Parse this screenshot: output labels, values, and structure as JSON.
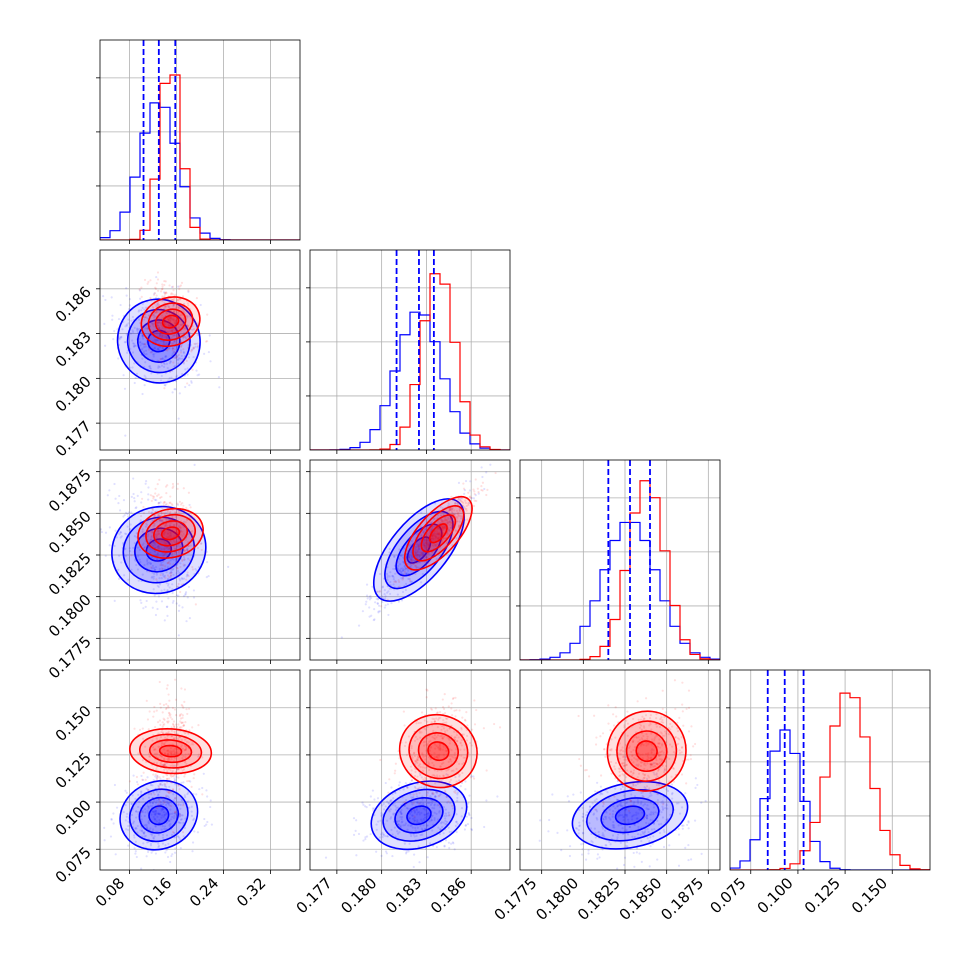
{
  "chart_data": {
    "type": "corner",
    "parameters": 4,
    "grid": true,
    "series": [
      {
        "color": "#0000ff",
        "mean": [
          0.13,
          0.1825,
          0.1828,
          0.093
        ],
        "sd": [
          0.032,
          0.0015,
          0.0016,
          0.009
        ],
        "quantile_lines": [
          [
            0.104,
            0.13,
            0.158
          ],
          [
            0.181,
            0.1825,
            0.1835
          ],
          [
            0.1815,
            0.1828,
            0.184
          ],
          [
            0.084,
            0.093,
            0.103
          ]
        ]
      },
      {
        "color": "#ff0000",
        "mean": [
          0.15,
          0.1838,
          0.1838,
          0.127
        ],
        "sd": [
          0.018,
          0.0011,
          0.0011,
          0.011
        ]
      }
    ],
    "correlations": [
      {
        "pair": [
          0,
          1
        ],
        "blue": -0.25,
        "red": -0.3
      },
      {
        "pair": [
          0,
          2
        ],
        "blue": -0.3,
        "red": -0.3
      },
      {
        "pair": [
          0,
          3
        ],
        "blue": 0.1,
        "red": 0.1
      },
      {
        "pair": [
          1,
          2
        ],
        "blue": 0.92,
        "red": 0.92
      },
      {
        "pair": [
          1,
          3
        ],
        "blue": 0.2,
        "red": 0.2
      },
      {
        "pair": [
          2,
          3
        ],
        "blue": 0.2,
        "red": 0.2
      }
    ],
    "axes": [
      {
        "range": [
          0.03,
          0.37
        ],
        "ticks": [
          0.08,
          0.16,
          0.24,
          0.32
        ],
        "tick_labels": [
          "0.08",
          "0.16",
          "0.24",
          "0.32"
        ]
      },
      {
        "range": [
          0.1752,
          0.1886
        ],
        "ticks": [
          0.177,
          0.18,
          0.183,
          0.186
        ],
        "tick_labels": [
          "0.177",
          "0.180",
          "0.183",
          "0.186"
        ]
      },
      {
        "range": [
          0.1762,
          0.1882
        ],
        "ticks": [
          0.1775,
          0.18,
          0.1825,
          0.185,
          0.1875
        ],
        "tick_labels": [
          "0.1775",
          "0.1800",
          "0.1825",
          "0.1850",
          "0.1875"
        ]
      },
      {
        "range": [
          0.064,
          0.17
        ],
        "ticks": [
          0.075,
          0.1,
          0.125,
          0.15
        ],
        "tick_labels": [
          "0.075",
          "0.100",
          "0.125",
          "0.150"
        ]
      }
    ]
  }
}
